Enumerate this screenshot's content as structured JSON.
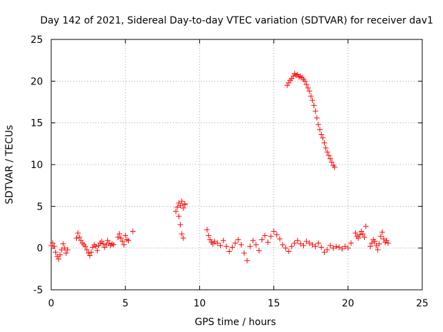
{
  "chart_data": {
    "type": "scatter",
    "title": "Day 142 of 2021, Sidereal Day-to-day VTEC variation (SDTVAR) for receiver dav1",
    "xlabel": "GPS time / hours",
    "ylabel": "SDTVAR / TECUs",
    "xlim": [
      0,
      25
    ],
    "ylim": [
      -5,
      25
    ],
    "xticks": [
      0,
      5,
      10,
      15,
      20,
      25
    ],
    "yticks": [
      -5,
      0,
      5,
      10,
      15,
      20,
      25
    ],
    "xtick_labels": [
      "0",
      "5",
      "10",
      "15",
      "20",
      "25"
    ],
    "ytick_labels": [
      "-5",
      "0",
      "5",
      "10",
      "15",
      "20",
      "25"
    ],
    "grid": true,
    "marker": "+",
    "color": "#ff0000",
    "series": [
      {
        "name": "SDTVAR",
        "x": [
          0.0,
          0.1,
          0.2,
          0.3,
          0.4,
          0.5,
          0.6,
          0.7,
          0.8,
          0.9,
          1.0,
          1.1,
          1.7,
          1.8,
          1.9,
          2.0,
          2.1,
          2.2,
          2.3,
          2.4,
          2.5,
          2.6,
          2.7,
          2.8,
          2.9,
          3.0,
          3.1,
          3.2,
          3.3,
          3.4,
          3.5,
          3.6,
          3.7,
          3.8,
          3.9,
          4.0,
          4.1,
          4.2,
          4.5,
          4.6,
          4.7,
          4.8,
          4.9,
          5.0,
          5.1,
          5.2,
          5.5,
          8.4,
          8.5,
          8.6,
          8.7,
          8.8,
          8.9,
          9.0,
          8.6,
          8.7,
          8.8,
          8.9,
          9.0,
          10.5,
          10.6,
          10.7,
          10.8,
          10.9,
          11.0,
          11.2,
          11.4,
          11.6,
          11.8,
          12.0,
          12.2,
          12.4,
          12.6,
          12.8,
          13.0,
          13.2,
          13.4,
          13.6,
          13.8,
          14.0,
          14.2,
          14.4,
          14.6,
          14.8,
          15.0,
          15.2,
          15.4,
          15.6,
          15.8,
          16.0,
          16.2,
          16.4,
          16.6,
          16.8,
          17.0,
          17.2,
          17.4,
          17.6,
          17.8,
          18.0,
          18.2,
          18.4,
          18.6,
          18.8,
          19.0,
          19.2,
          19.4,
          19.6,
          19.8,
          20.0,
          20.2,
          15.9,
          16.0,
          16.1,
          16.2,
          16.3,
          16.4,
          16.5,
          16.6,
          16.7,
          16.8,
          16.9,
          17.0,
          17.1,
          17.2,
          17.3,
          17.4,
          17.5,
          17.6,
          17.7,
          17.8,
          17.9,
          18.0,
          18.1,
          18.2,
          18.3,
          18.4,
          18.5,
          18.6,
          18.7,
          18.8,
          18.9,
          19.0,
          19.1,
          20.5,
          20.6,
          20.7,
          20.8,
          20.9,
          21.0,
          21.1,
          21.2,
          21.5,
          21.6,
          21.7,
          21.8,
          21.9,
          22.0,
          22.1,
          22.2,
          22.3,
          22.4,
          22.5,
          22.6,
          22.7
        ],
        "y": [
          0.3,
          0.6,
          0.2,
          -0.5,
          -1.0,
          -1.3,
          -0.8,
          -0.2,
          0.5,
          0.0,
          -0.6,
          -0.2,
          1.2,
          1.8,
          1.3,
          0.9,
          0.6,
          0.4,
          0.2,
          -0.2,
          -0.6,
          -0.9,
          -0.5,
          0.1,
          0.4,
          0.2,
          -0.3,
          0.3,
          0.6,
          0.8,
          0.5,
          0.1,
          0.4,
          0.9,
          0.6,
          0.3,
          0.5,
          0.4,
          1.3,
          1.7,
          1.2,
          0.8,
          0.4,
          1.5,
          1.0,
          0.9,
          2.0,
          4.4,
          4.9,
          3.8,
          2.8,
          1.7,
          1.2,
          5.2,
          5.4,
          5.1,
          5.6,
          4.8,
          5.3,
          2.2,
          1.5,
          1.0,
          0.7,
          0.5,
          0.8,
          0.6,
          0.3,
          0.9,
          0.2,
          -0.4,
          0.1,
          0.6,
          1.0,
          0.4,
          -0.6,
          -1.5,
          0.2,
          0.9,
          0.4,
          -0.3,
          1.0,
          1.5,
          0.7,
          1.4,
          2.0,
          1.6,
          1.1,
          0.4,
          0.0,
          -0.4,
          0.2,
          0.6,
          0.9,
          0.5,
          0.3,
          0.8,
          0.6,
          0.4,
          0.2,
          0.6,
          0.1,
          -0.5,
          -0.2,
          0.3,
          0.0,
          0.2,
          0.1,
          -0.1,
          0.2,
          0.0,
          0.6,
          19.5,
          19.8,
          20.1,
          20.3,
          20.6,
          20.9,
          20.7,
          20.8,
          20.5,
          20.6,
          20.4,
          20.2,
          20.0,
          19.6,
          19.2,
          18.8,
          18.2,
          17.7,
          17.1,
          16.4,
          15.6,
          14.8,
          14.2,
          13.6,
          13.2,
          12.6,
          12.0,
          11.5,
          11.1,
          10.7,
          10.3,
          9.9,
          9.7,
          1.8,
          1.4,
          1.2,
          1.6,
          2.0,
          1.7,
          1.3,
          2.6,
          0.2,
          0.6,
          1.0,
          0.8,
          0.3,
          -0.2,
          0.5,
          1.4,
          1.9,
          1.1,
          0.7,
          0.9,
          0.6
        ]
      }
    ]
  }
}
